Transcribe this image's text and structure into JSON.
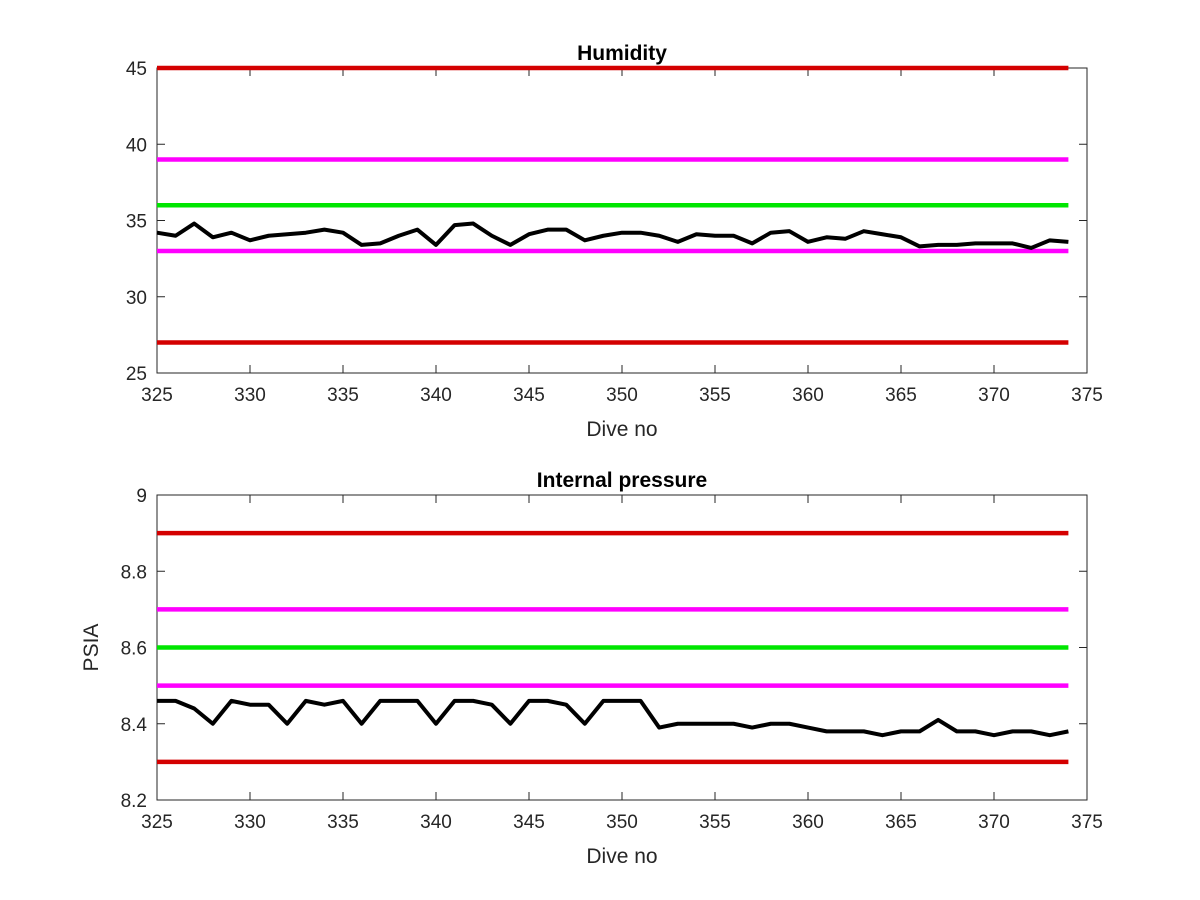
{
  "chart_data": [
    {
      "type": "line",
      "title": "Humidity",
      "xlabel": "Dive no",
      "ylabel": "",
      "xlim": [
        325,
        375
      ],
      "ylim": [
        25,
        45
      ],
      "xticks": [
        325,
        330,
        335,
        340,
        345,
        350,
        355,
        360,
        365,
        370,
        375
      ],
      "yticks": [
        25,
        30,
        35,
        40,
        45
      ],
      "grid": false,
      "thresholds": [
        {
          "value": 45,
          "color": "#d40000",
          "x_range": [
            325,
            374
          ]
        },
        {
          "value": 39,
          "color": "#ff00ff",
          "x_range": [
            325,
            374
          ]
        },
        {
          "value": 36,
          "color": "#00e600",
          "x_range": [
            325,
            374
          ]
        },
        {
          "value": 33,
          "color": "#ff00ff",
          "x_range": [
            325,
            374
          ]
        },
        {
          "value": 27,
          "color": "#d40000",
          "x_range": [
            325,
            374
          ]
        }
      ],
      "series": [
        {
          "color": "#000000",
          "x": [
            325,
            326,
            327,
            328,
            329,
            330,
            331,
            332,
            333,
            334,
            335,
            336,
            337,
            338,
            339,
            340,
            341,
            342,
            343,
            344,
            345,
            346,
            347,
            348,
            349,
            350,
            351,
            352,
            353,
            354,
            355,
            356,
            357,
            358,
            359,
            360,
            361,
            362,
            363,
            364,
            365,
            366,
            367,
            368,
            369,
            370,
            371,
            372,
            373,
            374
          ],
          "y": [
            34.2,
            34.0,
            34.8,
            33.9,
            34.2,
            33.7,
            34.0,
            34.1,
            34.2,
            34.4,
            34.2,
            33.4,
            33.5,
            34.0,
            34.4,
            33.4,
            34.7,
            34.8,
            34.0,
            33.4,
            34.1,
            34.4,
            34.4,
            33.7,
            34.0,
            34.2,
            34.2,
            34.0,
            33.6,
            34.1,
            34.0,
            34.0,
            33.5,
            34.2,
            34.3,
            33.6,
            33.9,
            33.8,
            34.3,
            34.1,
            33.9,
            33.3,
            33.4,
            33.4,
            33.5,
            33.5,
            33.5,
            33.2,
            33.7,
            33.6
          ]
        }
      ]
    },
    {
      "type": "line",
      "title": "Internal pressure",
      "xlabel": "Dive no",
      "ylabel": "PSIA",
      "xlim": [
        325,
        375
      ],
      "ylim": [
        8.2,
        9
      ],
      "xticks": [
        325,
        330,
        335,
        340,
        345,
        350,
        355,
        360,
        365,
        370,
        375
      ],
      "yticks": [
        8.2,
        8.4,
        8.6,
        8.8,
        9
      ],
      "grid": false,
      "thresholds": [
        {
          "value": 8.9,
          "color": "#d40000",
          "x_range": [
            325,
            374
          ]
        },
        {
          "value": 8.7,
          "color": "#ff00ff",
          "x_range": [
            325,
            374
          ]
        },
        {
          "value": 8.6,
          "color": "#00e600",
          "x_range": [
            325,
            374
          ]
        },
        {
          "value": 8.5,
          "color": "#ff00ff",
          "x_range": [
            325,
            374
          ]
        },
        {
          "value": 8.3,
          "color": "#d40000",
          "x_range": [
            325,
            374
          ]
        }
      ],
      "series": [
        {
          "color": "#000000",
          "x": [
            325,
            326,
            327,
            328,
            329,
            330,
            331,
            332,
            333,
            334,
            335,
            336,
            337,
            338,
            339,
            340,
            341,
            342,
            343,
            344,
            345,
            346,
            347,
            348,
            349,
            350,
            351,
            352,
            353,
            354,
            355,
            356,
            357,
            358,
            359,
            360,
            361,
            362,
            363,
            364,
            365,
            366,
            367,
            368,
            369,
            370,
            371,
            372,
            373,
            374
          ],
          "y": [
            8.46,
            8.46,
            8.44,
            8.4,
            8.46,
            8.45,
            8.45,
            8.4,
            8.46,
            8.45,
            8.46,
            8.4,
            8.46,
            8.46,
            8.46,
            8.4,
            8.46,
            8.46,
            8.45,
            8.4,
            8.46,
            8.46,
            8.45,
            8.4,
            8.46,
            8.46,
            8.46,
            8.39,
            8.4,
            8.4,
            8.4,
            8.4,
            8.39,
            8.4,
            8.4,
            8.39,
            8.38,
            8.38,
            8.38,
            8.37,
            8.38,
            8.38,
            8.41,
            8.38,
            8.38,
            8.37,
            8.38,
            8.38,
            8.37,
            8.38
          ]
        }
      ]
    }
  ]
}
